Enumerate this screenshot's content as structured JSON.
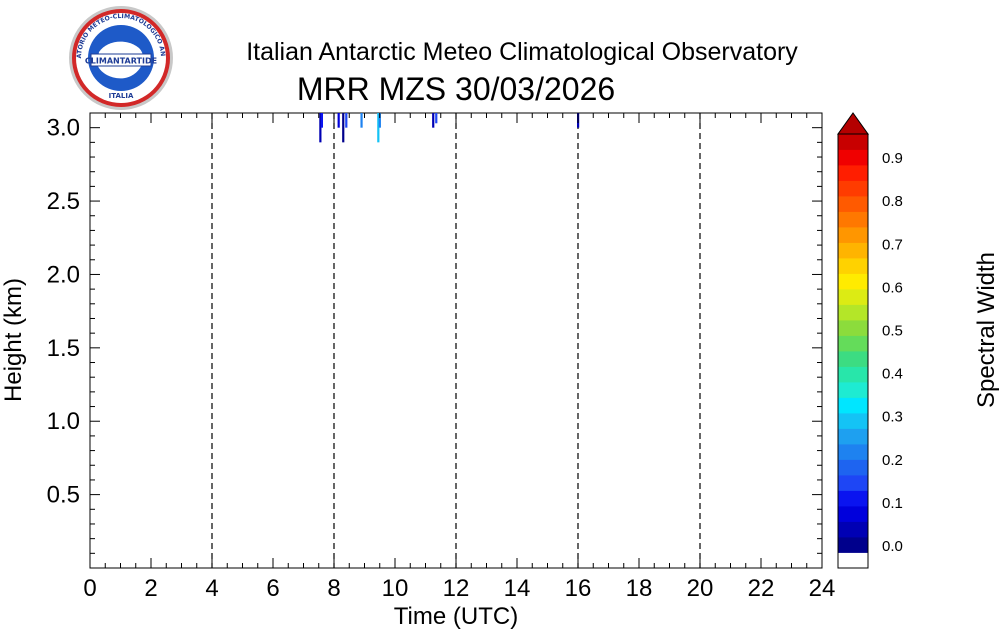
{
  "header": {
    "title": "Italian Antarctic Meteo Climatological Observatory",
    "subtitle": "MRR MZS 30/03/2026"
  },
  "logo": {
    "ring_text": "OSSERVATORIO METEO-CLIMATOLOGICO ANTARTICO",
    "center_text": "CLIMANTARTIDE",
    "bottom_text": "ITALIA"
  },
  "chart_data": {
    "type": "heatmap",
    "title": "MRR MZS 30/03/2026",
    "xlabel": "Time (UTC)",
    "ylabel": "Height (km)",
    "xlim": [
      0,
      24
    ],
    "ylim": [
      0,
      3.1
    ],
    "x_ticks": [
      "0",
      "2",
      "4",
      "6",
      "8",
      "10",
      "12",
      "14",
      "16",
      "18",
      "20",
      "22",
      "24"
    ],
    "y_ticks": [
      "0.5",
      "1.0",
      "1.5",
      "2.0",
      "2.5",
      "3.0"
    ],
    "vertical_dashed_lines_at": [
      4,
      8,
      12,
      16,
      20
    ],
    "grid": false,
    "colorbar": {
      "label": "Spectral Width",
      "min": 0.0,
      "max": 0.95,
      "ticks": [
        "0.0",
        "0.1",
        "0.2",
        "0.3",
        "0.4",
        "0.5",
        "0.6",
        "0.7",
        "0.8",
        "0.9"
      ],
      "colors": [
        "#ffffff",
        "#00008c",
        "#0000b4",
        "#0000dc",
        "#0a14f0",
        "#1e46f5",
        "#1e64f0",
        "#1e82f0",
        "#1ea0f0",
        "#14c3f5",
        "#00e6ff",
        "#1eebd2",
        "#28e6aa",
        "#3cdc82",
        "#64dc5a",
        "#8cdc3c",
        "#b4e628",
        "#dceb14",
        "#ffeb00",
        "#ffd200",
        "#ffb400",
        "#ff9600",
        "#ff7800",
        "#ff5a00",
        "#ff3c00",
        "#ff1e00",
        "#f00000",
        "#c80000"
      ]
    },
    "cells": [
      {
        "time": 7.55,
        "h_top": 3.1,
        "h_bottom": 2.9,
        "value": 0.05
      },
      {
        "time": 7.6,
        "h_top": 3.1,
        "h_bottom": 3.0,
        "value": 0.12
      },
      {
        "time": 8.15,
        "h_top": 3.1,
        "h_bottom": 3.0,
        "value": 0.08
      },
      {
        "time": 8.3,
        "h_top": 3.1,
        "h_bottom": 2.9,
        "value": 0.03
      },
      {
        "time": 8.4,
        "h_top": 3.1,
        "h_bottom": 3.0,
        "value": 0.15
      },
      {
        "time": 8.9,
        "h_top": 3.1,
        "h_bottom": 3.0,
        "value": 0.22
      },
      {
        "time": 9.45,
        "h_top": 3.1,
        "h_bottom": 2.9,
        "value": 0.3
      },
      {
        "time": 9.5,
        "h_top": 3.1,
        "h_bottom": 3.0,
        "value": 0.25
      },
      {
        "time": 11.25,
        "h_top": 3.1,
        "h_bottom": 3.0,
        "value": 0.07
      },
      {
        "time": 11.35,
        "h_top": 3.1,
        "h_bottom": 3.03,
        "value": 0.18
      },
      {
        "time": 16.0,
        "h_top": 3.1,
        "h_bottom": 3.0,
        "value": 0.05
      }
    ]
  }
}
